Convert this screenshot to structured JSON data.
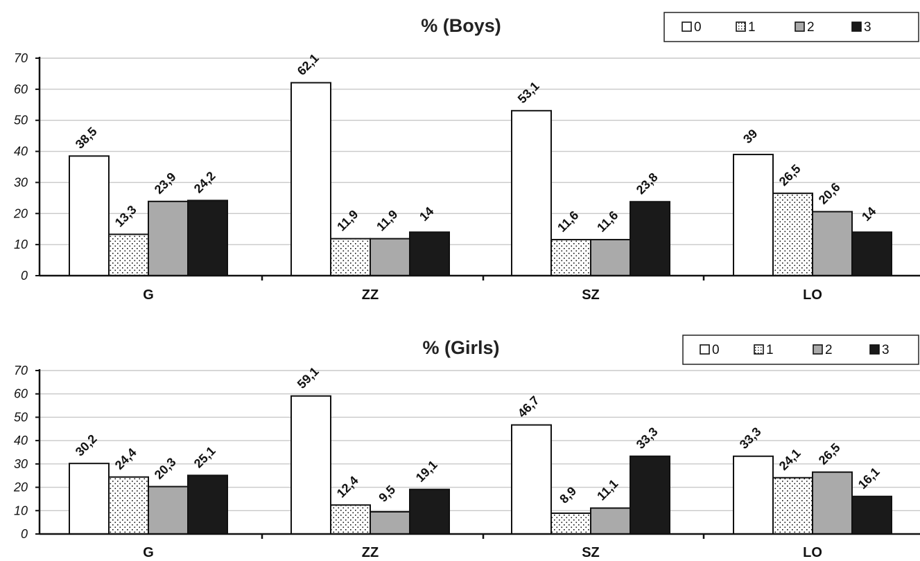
{
  "chart_data": [
    {
      "type": "bar",
      "title": "% (Boys)",
      "categories": [
        "G",
        "ZZ",
        "SZ",
        "LO"
      ],
      "series": [
        {
          "name": "0",
          "values": [
            38.5,
            62.1,
            53.1,
            39
          ]
        },
        {
          "name": "1",
          "values": [
            13.3,
            11.9,
            11.6,
            26.5
          ]
        },
        {
          "name": "2",
          "values": [
            23.9,
            11.9,
            11.6,
            20.6
          ]
        },
        {
          "name": "3",
          "values": [
            24.2,
            14,
            23.8,
            14
          ]
        }
      ],
      "value_labels": [
        [
          "38,5",
          "62,1",
          "53,1",
          "39"
        ],
        [
          "13,3",
          "11,9",
          "11,6",
          "26,5"
        ],
        [
          "23,9",
          "11,9",
          "11,6",
          "20,6"
        ],
        [
          "24,2",
          "14",
          "23,8",
          "14"
        ]
      ],
      "ylim": [
        0,
        70
      ],
      "yticks": [
        "0",
        "10",
        "20",
        "30",
        "40",
        "50",
        "60",
        "70"
      ],
      "grid": true,
      "legend": "top-right"
    },
    {
      "type": "bar",
      "title": "% (Girls)",
      "categories": [
        "G",
        "ZZ",
        "SZ",
        "LO"
      ],
      "series": [
        {
          "name": "0",
          "values": [
            30.2,
            59.1,
            46.7,
            33.3
          ]
        },
        {
          "name": "1",
          "values": [
            24.4,
            12.4,
            8.9,
            24.1
          ]
        },
        {
          "name": "2",
          "values": [
            20.3,
            9.5,
            11.1,
            26.5
          ]
        },
        {
          "name": "3",
          "values": [
            25.1,
            19.1,
            33.3,
            16.1
          ]
        }
      ],
      "value_labels": [
        [
          "30,2",
          "59,1",
          "46,7",
          "33,3"
        ],
        [
          "24,4",
          "12,4",
          "8,9",
          "24,1"
        ],
        [
          "20,3",
          "9,5",
          "11,1",
          "26,5"
        ],
        [
          "25,1",
          "19,1",
          "33,3",
          "16,1"
        ]
      ],
      "ylim": [
        0,
        70
      ],
      "yticks": [
        "0",
        "10",
        "20",
        "30",
        "40",
        "50",
        "60",
        "70"
      ],
      "grid": true,
      "legend": "top-right"
    }
  ],
  "colors": {
    "series_0": "#ffffff",
    "series_1": "dotted-pattern",
    "series_2": "#aaaaaa",
    "series_3": "#1a1a1a",
    "grid": "#c8c8c8"
  }
}
